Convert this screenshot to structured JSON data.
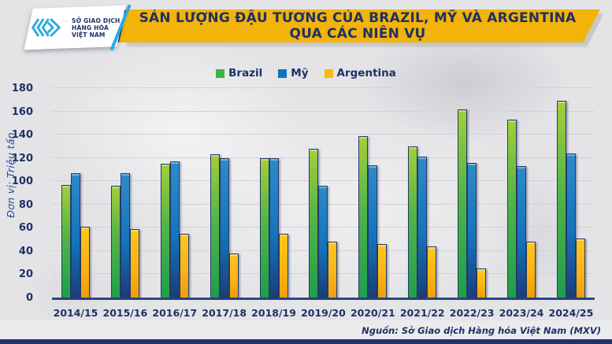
{
  "header": {
    "logo": {
      "icon": "mxv-chevron-diamond-logo",
      "trademark": "™",
      "org_line1": "SỞ GIAO DỊCH",
      "org_line2": "HÀNG HÓA",
      "org_line3": "VIỆT NAM"
    },
    "title_line1": "SẢN LƯỢNG ĐẬU TƯƠNG CỦA BRAZIL, MỸ VÀ ARGENTINA",
    "title_line2": "QUA CÁC NIÊN VỤ"
  },
  "chart_data": {
    "type": "bar",
    "title": "Sản lượng đậu tương của Brazil, Mỹ và Argentina qua các niên vụ",
    "categories": [
      "2014/15",
      "2015/16",
      "2016/17",
      "2017/18",
      "2018/19",
      "2019/20",
      "2020/21",
      "2021/22",
      "2022/23",
      "2023/24",
      "2024/25"
    ],
    "series": [
      {
        "name": "Brazil",
        "color": "#39B54A",
        "values": [
          97,
          96,
          115,
          123,
          120,
          128,
          139,
          130,
          162,
          153,
          169
        ]
      },
      {
        "name": "Mỹ",
        "color": "#1072BC",
        "values": [
          107,
          107,
          117,
          120,
          120,
          96,
          114,
          121,
          116,
          113,
          124
        ]
      },
      {
        "name": "Argentina",
        "color": "#FDB813",
        "values": [
          61,
          59,
          55,
          38,
          55,
          48,
          46,
          44,
          25,
          48,
          51
        ]
      }
    ],
    "xlabel": "",
    "ylabel": "Đơn vị: Triệu tấn",
    "ylim": [
      0,
      180
    ],
    "ytick_step": 20,
    "grid": true,
    "legend_position": "top-center"
  },
  "footer": {
    "source": "Nguồn: Sở Giao dịch Hàng hóa Việt Nam (MXV)"
  },
  "colors": {
    "background": "#E4E4E7",
    "banner_gold": "#F2B30A",
    "navy": "#1E3167",
    "cyan_accent": "#29ABE2",
    "axis_line": "#2A4880"
  }
}
